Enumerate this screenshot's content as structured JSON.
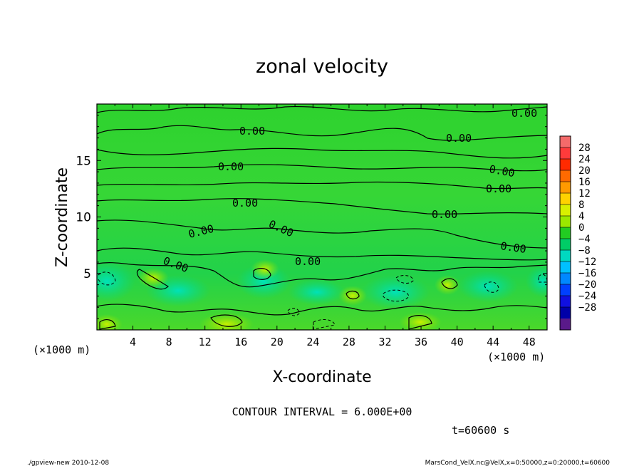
{
  "chart_data": {
    "type": "heatmap",
    "title": "zonal velocity",
    "xlabel": "X-coordinate",
    "ylabel": "Z-coordinate",
    "x_units": "(×1000 m)",
    "y_units": "(×1000 m)",
    "xlim": [
      0,
      50
    ],
    "ylim": [
      0,
      20
    ],
    "x_ticks": [
      "4",
      "8",
      "12",
      "16",
      "20",
      "24",
      "28",
      "32",
      "36",
      "40",
      "44",
      "48"
    ],
    "y_ticks": [
      "5",
      "10",
      "15"
    ],
    "contour_label": "0.00",
    "contour_interval_text": "CONTOUR INTERVAL = 6.000E+00",
    "time_text": "t=60600 s",
    "colorbar": {
      "levels": [
        -28,
        -24,
        -20,
        -16,
        -12,
        -8,
        -4,
        0,
        4,
        8,
        12,
        16,
        20,
        24,
        28
      ],
      "labels": [
        "28",
        "24",
        "20",
        "16",
        "12",
        "8",
        "4",
        "0",
        "−4",
        "−8",
        "−12",
        "−16",
        "−20",
        "−24",
        "−28"
      ],
      "colors": [
        "#f46b6b",
        "#ff3b3b",
        "#ff2a00",
        "#ff6a00",
        "#ff9a00",
        "#ffd200",
        "#d8f000",
        "#9be800",
        "#22cc22",
        "#00cc66",
        "#00d8c0",
        "#00c0ff",
        "#0088ff",
        "#0040ff",
        "#1010e0",
        "#0000a8",
        "#5a1a8a"
      ]
    },
    "field_description_values": {
      "background_value": 0,
      "positive_anomalies_near_bottom": [
        2,
        3
      ],
      "negative_anomalies_near_bottom": [
        -4,
        -6
      ]
    }
  },
  "footer": {
    "left": "./gpview-new   2010-12-08",
    "right": "MarsCond_VelX.nc@VelX,x=0:50000,z=0:20000,t=60600"
  }
}
